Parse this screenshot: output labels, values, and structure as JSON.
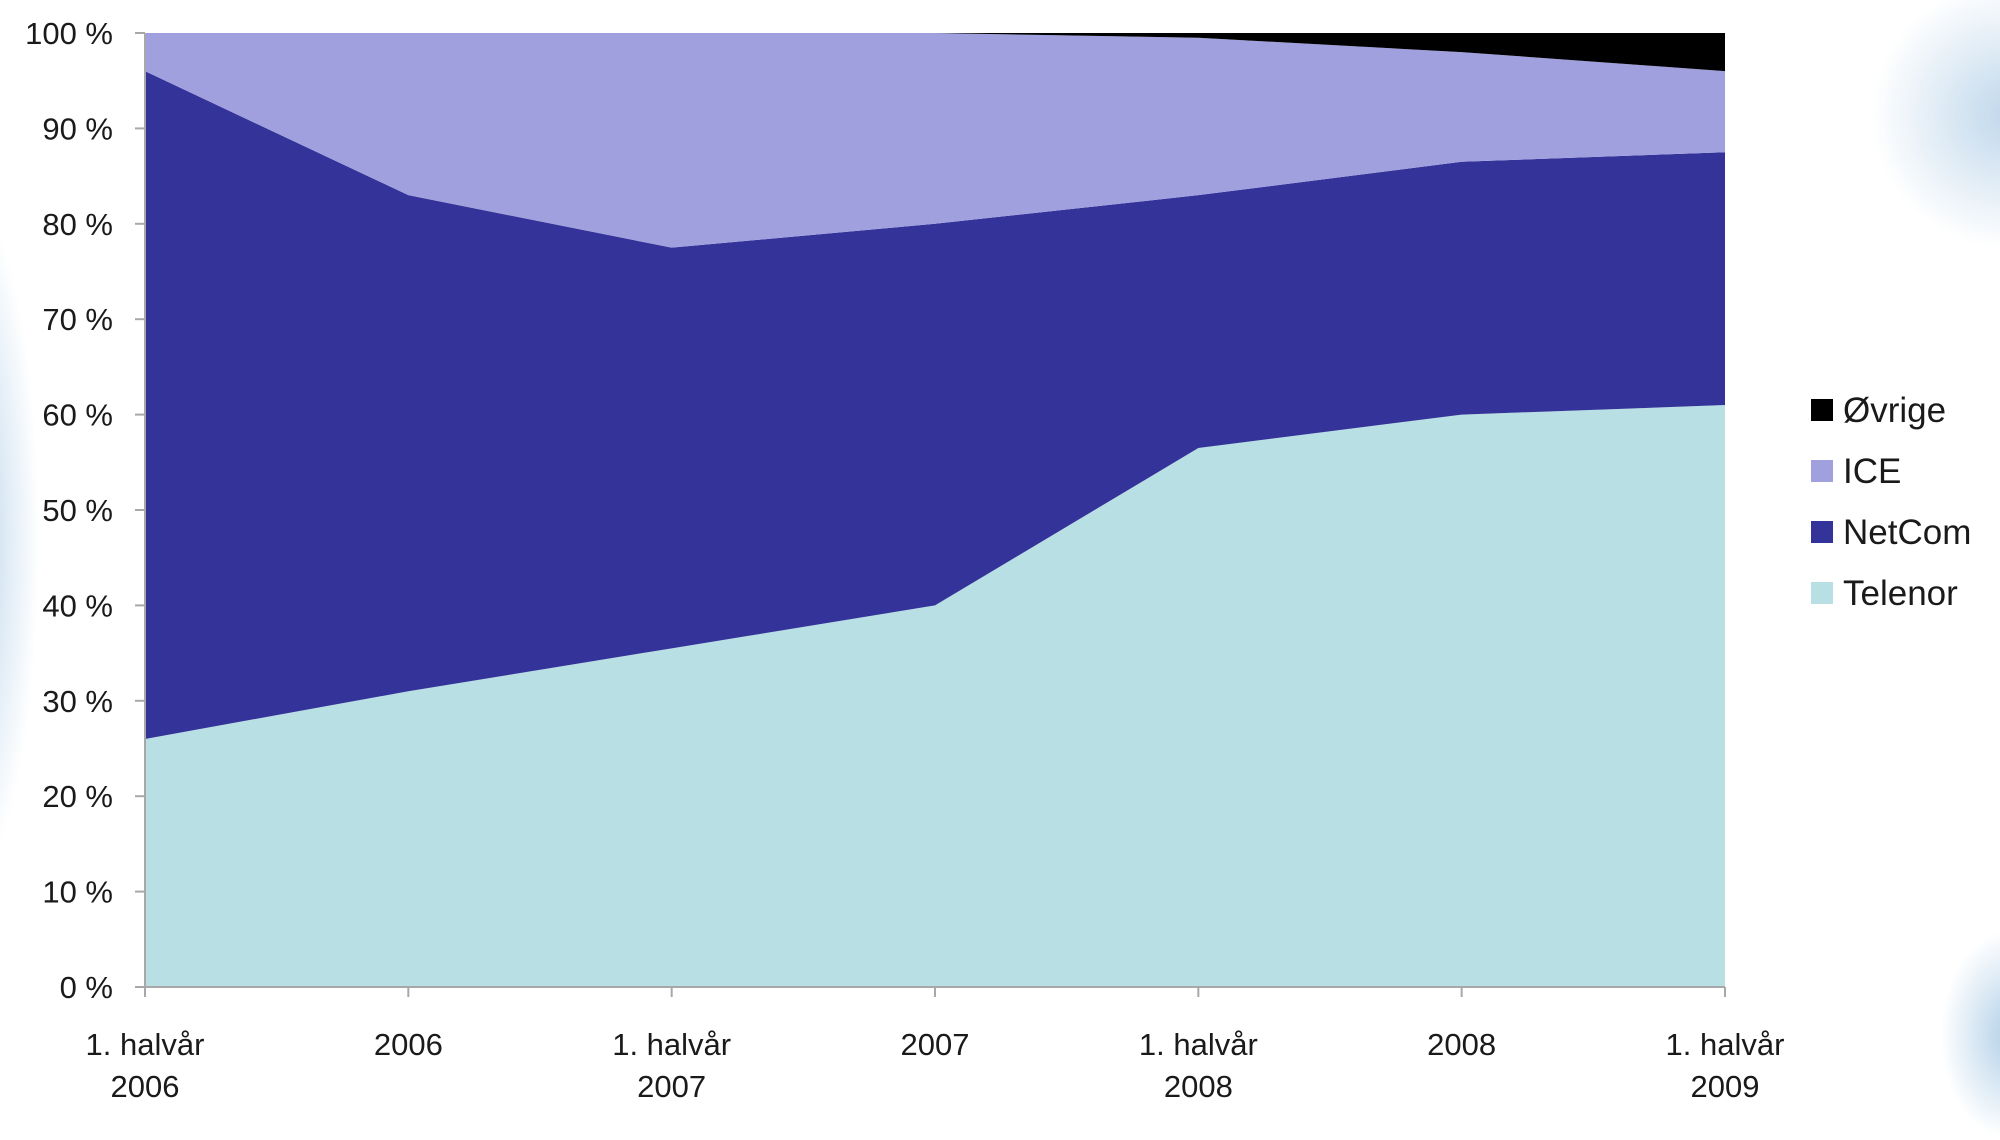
{
  "chart_data": {
    "type": "area",
    "stacked": true,
    "percent": true,
    "categories": [
      [
        "1. halvår",
        "2006"
      ],
      [
        "2006"
      ],
      [
        "1. halvår",
        "2007"
      ],
      [
        "2007"
      ],
      [
        "1. halvår",
        "2008"
      ],
      [
        "2008"
      ],
      [
        "1. halvår",
        "2009"
      ]
    ],
    "y_ticks": [
      "0 %",
      "10 %",
      "20 %",
      "30 %",
      "40 %",
      "50 %",
      "60 %",
      "70 %",
      "80 %",
      "90 %",
      "100 %"
    ],
    "ylim": [
      0,
      100
    ],
    "series": [
      {
        "name": "Telenor",
        "color": "#b8dfe3",
        "values": [
          26,
          31,
          35.5,
          40,
          56.5,
          60,
          61
        ]
      },
      {
        "name": "NetCom",
        "color": "#333399",
        "values": [
          70,
          52,
          42,
          40,
          26.5,
          26.5,
          26.5
        ]
      },
      {
        "name": "ICE",
        "color": "#a0a0de",
        "values": [
          4,
          17,
          22.5,
          20,
          16.5,
          11.5,
          8.5
        ]
      },
      {
        "name": "Øvrige",
        "color": "#000000",
        "values": [
          0,
          0,
          0,
          0,
          0.5,
          2,
          4
        ]
      }
    ],
    "legend": {
      "position": "right",
      "entries": [
        "Øvrige",
        "ICE",
        "NetCom",
        "Telenor"
      ]
    },
    "grid": false,
    "axis_color": "#a8a8a8"
  }
}
